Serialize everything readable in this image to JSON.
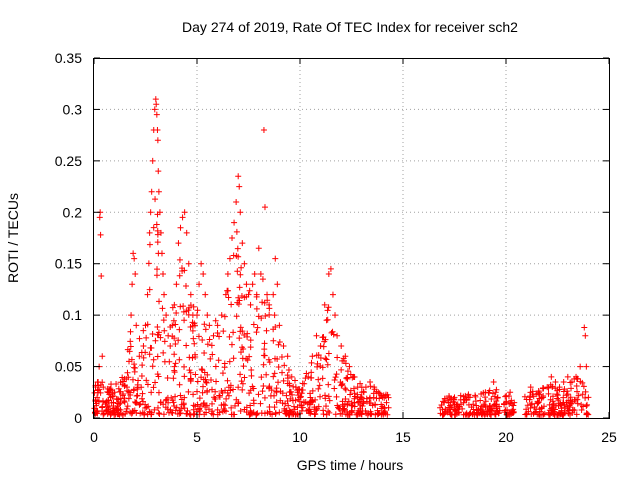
{
  "chart_data": {
    "type": "scatter",
    "title": "Day 274 of 2019, Rate Of TEC Index for receiver sch2",
    "xlabel": "GPS time / hours",
    "ylabel": "ROTI / TECUs",
    "xlim": [
      0,
      25
    ],
    "ylim": [
      0,
      0.35
    ],
    "x_ticks": [
      0,
      5,
      10,
      15,
      20,
      25
    ],
    "x_tick_labels": [
      "0",
      "5",
      "10",
      "15",
      "20",
      "25"
    ],
    "y_ticks": [
      0,
      0.05,
      0.1,
      0.15,
      0.2,
      0.25,
      0.3,
      0.35
    ],
    "y_tick_labels": [
      "0",
      "0.05",
      "0.1",
      "0.15",
      "0.2",
      "0.25",
      "0.3",
      "0.35"
    ],
    "grid": true,
    "marker": "+",
    "color": "#ff0000",
    "series": [
      {
        "points": [
          [
            0.05,
            0.005
          ],
          [
            0.1,
            0.012
          ],
          [
            0.15,
            0.02
          ],
          [
            0.2,
            0.035
          ],
          [
            0.25,
            0.05
          ],
          [
            0.3,
            0.2
          ],
          [
            0.32,
            0.178
          ],
          [
            0.35,
            0.138
          ],
          [
            0.28,
            0.195
          ],
          [
            0.4,
            0.06
          ],
          [
            0.45,
            0.03
          ],
          [
            0.6,
            0.015
          ],
          [
            0.8,
            0.02
          ],
          [
            1.0,
            0.025
          ],
          [
            1.2,
            0.018
          ],
          [
            1.4,
            0.022
          ],
          [
            1.6,
            0.03
          ],
          [
            1.7,
            0.055
          ],
          [
            1.8,
            0.1
          ],
          [
            1.85,
            0.13
          ],
          [
            1.9,
            0.16
          ],
          [
            1.95,
            0.155
          ],
          [
            2.0,
            0.14
          ],
          [
            2.05,
            0.09
          ],
          [
            2.2,
            0.06
          ],
          [
            2.4,
            0.07
          ],
          [
            2.5,
            0.09
          ],
          [
            2.6,
            0.12
          ],
          [
            2.7,
            0.18
          ],
          [
            2.75,
            0.2
          ],
          [
            2.8,
            0.22
          ],
          [
            2.85,
            0.25
          ],
          [
            2.9,
            0.28
          ],
          [
            2.95,
            0.3
          ],
          [
            3.0,
            0.31
          ],
          [
            3.02,
            0.305
          ],
          [
            3.05,
            0.295
          ],
          [
            3.08,
            0.28
          ],
          [
            3.1,
            0.27
          ],
          [
            3.12,
            0.24
          ],
          [
            3.15,
            0.22
          ],
          [
            3.2,
            0.2
          ],
          [
            3.25,
            0.18
          ],
          [
            3.3,
            0.16
          ],
          [
            3.35,
            0.14
          ],
          [
            3.4,
            0.12
          ],
          [
            3.5,
            0.1
          ],
          [
            3.6,
            0.08
          ],
          [
            3.7,
            0.07
          ],
          [
            3.8,
            0.09
          ],
          [
            3.9,
            0.11
          ],
          [
            4.0,
            0.13
          ],
          [
            4.1,
            0.17
          ],
          [
            4.2,
            0.185
          ],
          [
            4.3,
            0.195
          ],
          [
            4.4,
            0.2
          ],
          [
            4.5,
            0.18
          ],
          [
            4.6,
            0.15
          ],
          [
            4.7,
            0.12
          ],
          [
            4.8,
            0.1
          ],
          [
            4.9,
            0.09
          ],
          [
            5.0,
            0.1
          ],
          [
            5.1,
            0.13
          ],
          [
            5.2,
            0.15
          ],
          [
            5.3,
            0.14
          ],
          [
            5.4,
            0.12
          ],
          [
            5.5,
            0.1
          ],
          [
            5.6,
            0.09
          ],
          [
            5.8,
            0.08
          ],
          [
            6.0,
            0.09
          ],
          [
            6.2,
            0.1
          ],
          [
            6.4,
            0.12
          ],
          [
            6.5,
            0.14
          ],
          [
            6.6,
            0.155
          ],
          [
            6.7,
            0.175
          ],
          [
            6.8,
            0.19
          ],
          [
            6.9,
            0.21
          ],
          [
            7.0,
            0.235
          ],
          [
            7.05,
            0.225
          ],
          [
            7.1,
            0.2
          ],
          [
            7.2,
            0.17
          ],
          [
            7.3,
            0.15
          ],
          [
            7.4,
            0.13
          ],
          [
            7.5,
            0.12
          ],
          [
            7.6,
            0.11
          ],
          [
            7.7,
            0.13
          ],
          [
            7.8,
            0.14
          ],
          [
            7.9,
            0.12
          ],
          [
            8.0,
            0.165
          ],
          [
            8.1,
            0.14
          ],
          [
            8.2,
            0.135
          ],
          [
            8.25,
            0.28
          ],
          [
            8.3,
            0.205
          ],
          [
            8.4,
            0.12
          ],
          [
            8.5,
            0.11
          ],
          [
            8.7,
            0.12
          ],
          [
            8.8,
            0.155
          ],
          [
            8.9,
            0.13
          ],
          [
            9.0,
            0.09
          ],
          [
            9.2,
            0.07
          ],
          [
            9.4,
            0.06
          ],
          [
            9.6,
            0.04
          ],
          [
            9.8,
            0.03
          ],
          [
            10.0,
            0.02
          ],
          [
            10.2,
            0.015
          ],
          [
            10.4,
            0.04
          ],
          [
            10.6,
            0.06
          ],
          [
            10.8,
            0.08
          ],
          [
            11.0,
            0.07
          ],
          [
            11.2,
            0.11
          ],
          [
            11.4,
            0.14
          ],
          [
            11.5,
            0.145
          ],
          [
            11.6,
            0.12
          ],
          [
            11.7,
            0.1
          ],
          [
            11.8,
            0.08
          ],
          [
            12.0,
            0.07
          ],
          [
            12.2,
            0.06
          ],
          [
            12.4,
            0.05
          ],
          [
            12.6,
            0.04
          ],
          [
            12.8,
            0.03
          ],
          [
            13.0,
            0.025
          ],
          [
            13.2,
            0.03
          ],
          [
            13.4,
            0.035
          ],
          [
            13.6,
            0.03
          ],
          [
            13.8,
            0.025
          ],
          [
            14.0,
            0.02
          ],
          [
            14.2,
            0.015
          ],
          [
            14.3,
            0.01
          ],
          [
            16.8,
            0.01
          ],
          [
            17.0,
            0.015
          ],
          [
            17.5,
            0.02
          ],
          [
            18.0,
            0.018
          ],
          [
            18.5,
            0.022
          ],
          [
            19.0,
            0.025
          ],
          [
            19.4,
            0.035
          ],
          [
            19.6,
            0.02
          ],
          [
            20.0,
            0.015
          ],
          [
            20.2,
            0.025
          ],
          [
            20.4,
            0.015
          ],
          [
            21.0,
            0.018
          ],
          [
            21.2,
            0.03
          ],
          [
            21.6,
            0.025
          ],
          [
            21.8,
            0.02
          ],
          [
            22.0,
            0.03
          ],
          [
            22.2,
            0.04
          ],
          [
            22.4,
            0.035
          ],
          [
            22.6,
            0.03
          ],
          [
            22.8,
            0.035
          ],
          [
            23.0,
            0.04
          ],
          [
            23.2,
            0.035
          ],
          [
            23.4,
            0.04
          ],
          [
            23.6,
            0.05
          ],
          [
            23.8,
            0.088
          ],
          [
            23.85,
            0.08
          ],
          [
            23.9,
            0.05
          ],
          [
            24.0,
            0.02
          ]
        ]
      }
    ],
    "envelope": [
      [
        0.0,
        0.02
      ],
      [
        0.3,
        0.06
      ],
      [
        0.6,
        0.03
      ],
      [
        1.0,
        0.03
      ],
      [
        1.5,
        0.04
      ],
      [
        1.8,
        0.09
      ],
      [
        2.1,
        0.07
      ],
      [
        2.5,
        0.1
      ],
      [
        2.8,
        0.2
      ],
      [
        3.0,
        0.24
      ],
      [
        3.3,
        0.15
      ],
      [
        3.6,
        0.09
      ],
      [
        4.0,
        0.13
      ],
      [
        4.3,
        0.17
      ],
      [
        4.7,
        0.11
      ],
      [
        5.0,
        0.1
      ],
      [
        5.3,
        0.13
      ],
      [
        5.7,
        0.09
      ],
      [
        6.2,
        0.1
      ],
      [
        6.6,
        0.14
      ],
      [
        7.0,
        0.19
      ],
      [
        7.4,
        0.13
      ],
      [
        7.8,
        0.13
      ],
      [
        8.2,
        0.12
      ],
      [
        8.6,
        0.11
      ],
      [
        9.0,
        0.08
      ],
      [
        9.5,
        0.05
      ],
      [
        10.0,
        0.025
      ],
      [
        10.5,
        0.05
      ],
      [
        11.0,
        0.07
      ],
      [
        11.5,
        0.12
      ],
      [
        12.0,
        0.06
      ],
      [
        12.5,
        0.04
      ],
      [
        13.0,
        0.03
      ],
      [
        13.5,
        0.03
      ],
      [
        14.3,
        0.02
      ],
      [
        16.8,
        0.018
      ],
      [
        17.5,
        0.02
      ],
      [
        18.5,
        0.022
      ],
      [
        19.5,
        0.025
      ],
      [
        20.0,
        0.02
      ],
      [
        20.4,
        0.02
      ],
      [
        21.0,
        0.02
      ],
      [
        21.5,
        0.025
      ],
      [
        22.0,
        0.03
      ],
      [
        22.5,
        0.035
      ],
      [
        23.0,
        0.035
      ],
      [
        23.5,
        0.04
      ],
      [
        24.0,
        0.03
      ]
    ],
    "segments": [
      [
        0.0,
        14.3
      ],
      [
        16.8,
        19.7
      ],
      [
        19.9,
        20.4
      ],
      [
        20.9,
        21.9
      ],
      [
        22.0,
        24.0
      ]
    ]
  }
}
